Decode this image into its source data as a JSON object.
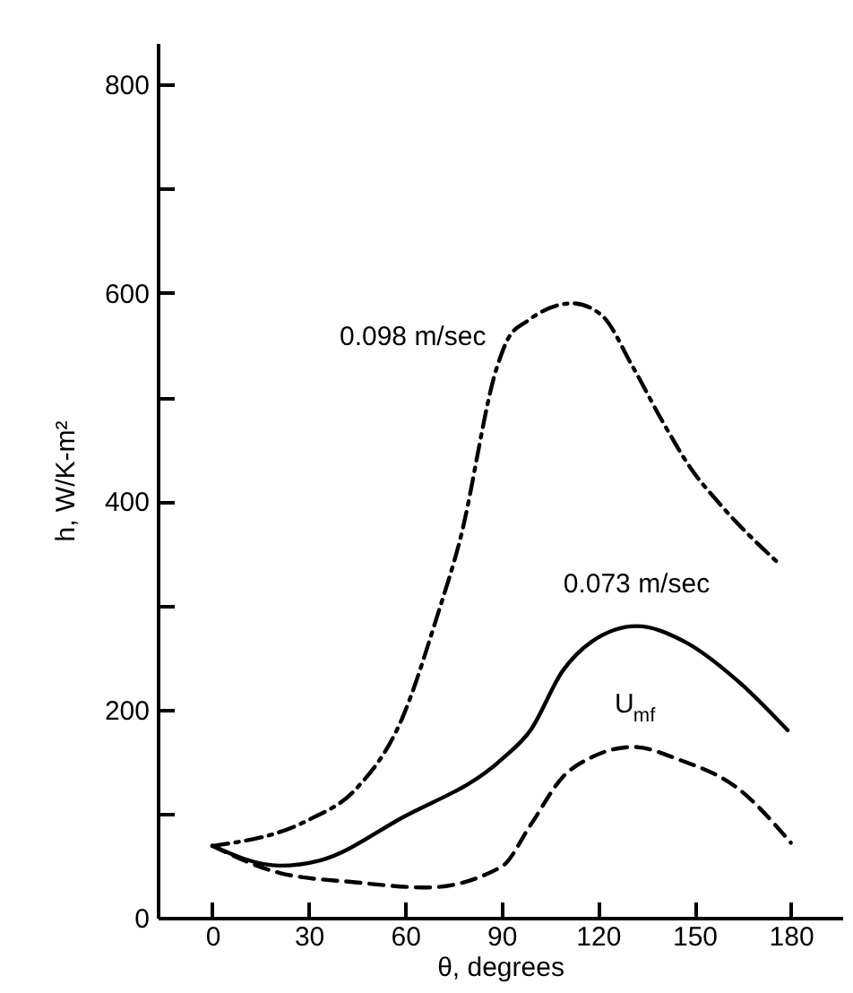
{
  "chart_data": {
    "type": "line",
    "xlabel": "θ, degrees",
    "ylabel": "h, W/K-m²",
    "xlim": [
      -17,
      196
    ],
    "ylim": [
      0,
      840
    ],
    "xticks": [
      0,
      30,
      60,
      90,
      120,
      150,
      180
    ],
    "yticks": [
      0,
      {
        "value": 100,
        "label": null
      },
      200,
      {
        "value": 300,
        "label": null
      },
      400,
      {
        "value": 500,
        "label": null
      },
      600,
      {
        "value": 700,
        "label": null
      },
      800
    ],
    "grid": false,
    "marker": "none",
    "series": [
      {
        "name": "0.098 m/sec",
        "color": "#000000",
        "line_style": "dashdot",
        "x": [
          0,
          30,
          44.5,
          59,
          70,
          77,
          88.5,
          92,
          98,
          112,
          121,
          131,
          140,
          149,
          158,
          177
        ],
        "values": [
          69,
          94,
          123,
          191,
          290,
          362,
          528,
          556,
          573,
          590,
          579,
          528,
          477,
          431,
          397,
          338
        ]
      },
      {
        "name": "0.073 m/sec",
        "color": "#000000",
        "line_style": "solid",
        "x": [
          0,
          21,
          33.5,
          59,
          90,
          99,
          109,
          118,
          132,
          147,
          164,
          179
        ],
        "values": [
          69,
          50,
          55,
          96,
          152,
          180,
          237,
          265,
          280,
          265,
          226,
          180
        ]
      },
      {
        "name": "U$_{mf}$",
        "color": "#000000",
        "line_style": "dashed",
        "x": [
          0,
          21,
          44.5,
          66.5,
          90,
          99,
          109,
          118,
          131,
          145,
          164,
          180
        ],
        "values": [
          69,
          43,
          34,
          29,
          49,
          89,
          135,
          154,
          164,
          152,
          123,
          72
        ]
      }
    ]
  }
}
